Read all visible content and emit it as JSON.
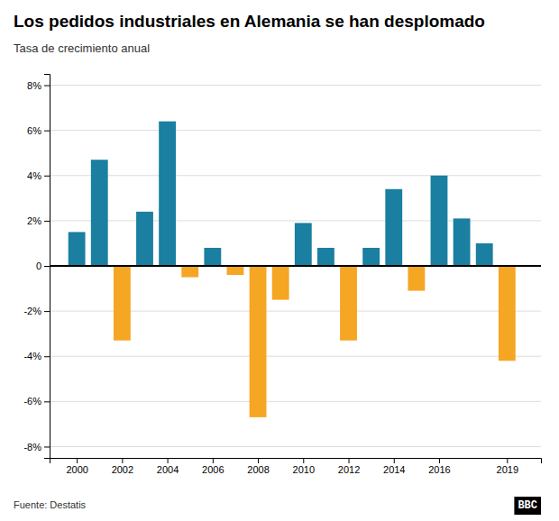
{
  "chart_data": {
    "type": "bar",
    "title": "Los pedidos industriales en Alemania se han desplomado",
    "subtitle": "Tasa de crecimiento anual",
    "annotations": [
      {
        "text": "Fuente: Destatis"
      },
      {
        "text": "BBC"
      }
    ],
    "x": [
      2000,
      2001,
      2002,
      2003,
      2004,
      2005,
      2006,
      2007,
      2008,
      2009,
      2010,
      2011,
      2012,
      2013,
      2014,
      2015,
      2016,
      2017,
      2018,
      2019
    ],
    "values": [
      1.5,
      4.7,
      -3.3,
      2.4,
      6.4,
      -0.5,
      0.8,
      -0.4,
      -6.7,
      -1.5,
      1.9,
      0.8,
      -3.3,
      0.8,
      3.4,
      -1.1,
      4.0,
      2.1,
      1.0,
      -4.2
    ],
    "colors": [
      "#1a7fa0",
      "#1a7fa0",
      "#f5a623",
      "#1a7fa0",
      "#1a7fa0",
      "#f5a623",
      "#1a7fa0",
      "#f5a623",
      "#f5a623",
      "#f5a623",
      "#1a7fa0",
      "#1a7fa0",
      "#f5a623",
      "#1a7fa0",
      "#1a7fa0",
      "#f5a623",
      "#1a7fa0",
      "#1a7fa0",
      "#1a7fa0",
      "#f5a623"
    ],
    "xlim": [
      1998.8,
      2020.5
    ],
    "xticks": [
      2000,
      2002,
      2004,
      2006,
      2008,
      2010,
      2012,
      2014,
      2016,
      2019
    ],
    "ylim": [
      -8.5,
      8.5
    ],
    "yticks": [
      {
        "value": -8,
        "label": "-8%"
      },
      {
        "value": -6,
        "label": "-6%"
      },
      {
        "value": -4,
        "label": "-4%"
      },
      {
        "value": -2,
        "label": "-2%"
      },
      0,
      {
        "value": 2,
        "label": "2%"
      },
      {
        "value": 4,
        "label": "4%"
      },
      {
        "value": 6,
        "label": "6%"
      },
      {
        "value": 8,
        "label": "8%"
      }
    ],
    "grid": true
  }
}
